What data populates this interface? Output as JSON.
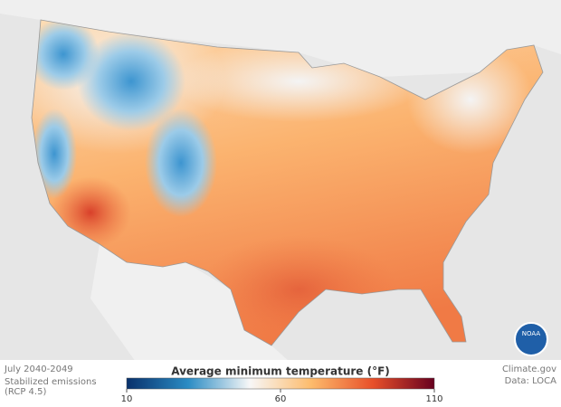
{
  "map": {
    "caption": {
      "period": "July 2040-2049",
      "scenario_line1": "Stabilized emissions",
      "scenario_line2": "(RCP 4.5)"
    },
    "legend": {
      "title": "Average minimum temperature (°F)",
      "lim": [
        10,
        110
      ],
      "ticks": [
        10,
        60,
        110
      ],
      "colors": [
        "#08306b",
        "#2b8cc4",
        "#f7f7f7",
        "#fdbb6c",
        "#e8502a",
        "#67001f"
      ]
    },
    "credit": {
      "source": "Climate.gov",
      "data": "Data: LOCA"
    },
    "logo": "NOAA"
  }
}
